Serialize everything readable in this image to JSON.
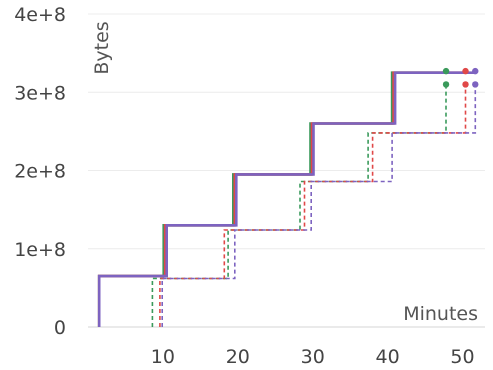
{
  "chart_data": {
    "type": "line",
    "xlabel": "Minutes",
    "ylabel": "Bytes",
    "xlim": [
      0,
      53
    ],
    "ylim": [
      0,
      400000000
    ],
    "x_ticks": [
      10,
      20,
      30,
      40,
      50
    ],
    "x_tick_labels": [
      "10",
      "20",
      "30",
      "40",
      "50"
    ],
    "y_ticks": [
      0,
      100000000,
      200000000,
      300000000,
      400000000
    ],
    "y_tick_labels": [
      "0",
      "1e+8",
      "2e+8",
      "3e+8",
      "4e+8"
    ],
    "grid": true,
    "series": [
      {
        "color": "#3a9a5b",
        "style": "solid",
        "points": [
          [
            1.5,
            0
          ],
          [
            1.5,
            65000000
          ],
          [
            10.1,
            65000000
          ],
          [
            10.1,
            130000000
          ],
          [
            19.4,
            130000000
          ],
          [
            19.4,
            195000000
          ],
          [
            29.7,
            195000000
          ],
          [
            29.7,
            260000000
          ],
          [
            40.6,
            260000000
          ],
          [
            40.6,
            325000000
          ],
          [
            47.8,
            325000000
          ]
        ],
        "end_marker": [
          47.8,
          327000000
        ]
      },
      {
        "color": "#e04848",
        "style": "solid",
        "points": [
          [
            1.5,
            0
          ],
          [
            1.5,
            65000000
          ],
          [
            10.3,
            65000000
          ],
          [
            10.3,
            130000000
          ],
          [
            19.6,
            130000000
          ],
          [
            19.6,
            195000000
          ],
          [
            29.9,
            195000000
          ],
          [
            29.9,
            260000000
          ],
          [
            40.8,
            260000000
          ],
          [
            40.8,
            325000000
          ],
          [
            50.4,
            325000000
          ]
        ],
        "end_marker": [
          50.4,
          327000000
        ]
      },
      {
        "color": "#7d63c0",
        "style": "solid",
        "points": [
          [
            1.5,
            0
          ],
          [
            1.5,
            65000000
          ],
          [
            10.5,
            65000000
          ],
          [
            10.5,
            130000000
          ],
          [
            19.8,
            130000000
          ],
          [
            19.8,
            195000000
          ],
          [
            30.1,
            195000000
          ],
          [
            30.1,
            260000000
          ],
          [
            41.0,
            260000000
          ],
          [
            41.0,
            325000000
          ],
          [
            51.7,
            325000000
          ]
        ],
        "end_marker": [
          51.7,
          327000000
        ]
      },
      {
        "color": "#3a9a5b",
        "style": "dashed",
        "points": [
          [
            8.6,
            0
          ],
          [
            8.6,
            62000000
          ],
          [
            18.7,
            62000000
          ],
          [
            18.7,
            124000000
          ],
          [
            28.3,
            124000000
          ],
          [
            28.3,
            186000000
          ],
          [
            37.4,
            186000000
          ],
          [
            37.4,
            248000000
          ],
          [
            47.8,
            248000000
          ],
          [
            47.8,
            310000000
          ]
        ],
        "end_marker": [
          47.8,
          310000000
        ]
      },
      {
        "color": "#e04848",
        "style": "dashed",
        "points": [
          [
            9.6,
            0
          ],
          [
            9.6,
            62000000
          ],
          [
            18.2,
            62000000
          ],
          [
            18.2,
            124000000
          ],
          [
            28.9,
            124000000
          ],
          [
            28.9,
            186000000
          ],
          [
            38.0,
            186000000
          ],
          [
            38.0,
            248000000
          ],
          [
            50.4,
            248000000
          ],
          [
            50.4,
            310000000
          ]
        ],
        "end_marker": [
          50.4,
          310000000
        ]
      },
      {
        "color": "#7d63c0",
        "style": "dashed",
        "points": [
          [
            9.9,
            0
          ],
          [
            9.9,
            62000000
          ],
          [
            19.6,
            62000000
          ],
          [
            19.6,
            124000000
          ],
          [
            29.8,
            124000000
          ],
          [
            29.8,
            186000000
          ],
          [
            40.6,
            186000000
          ],
          [
            40.6,
            248000000
          ],
          [
            51.7,
            248000000
          ],
          [
            51.7,
            310000000
          ]
        ],
        "end_marker": [
          51.7,
          310000000
        ]
      }
    ]
  }
}
